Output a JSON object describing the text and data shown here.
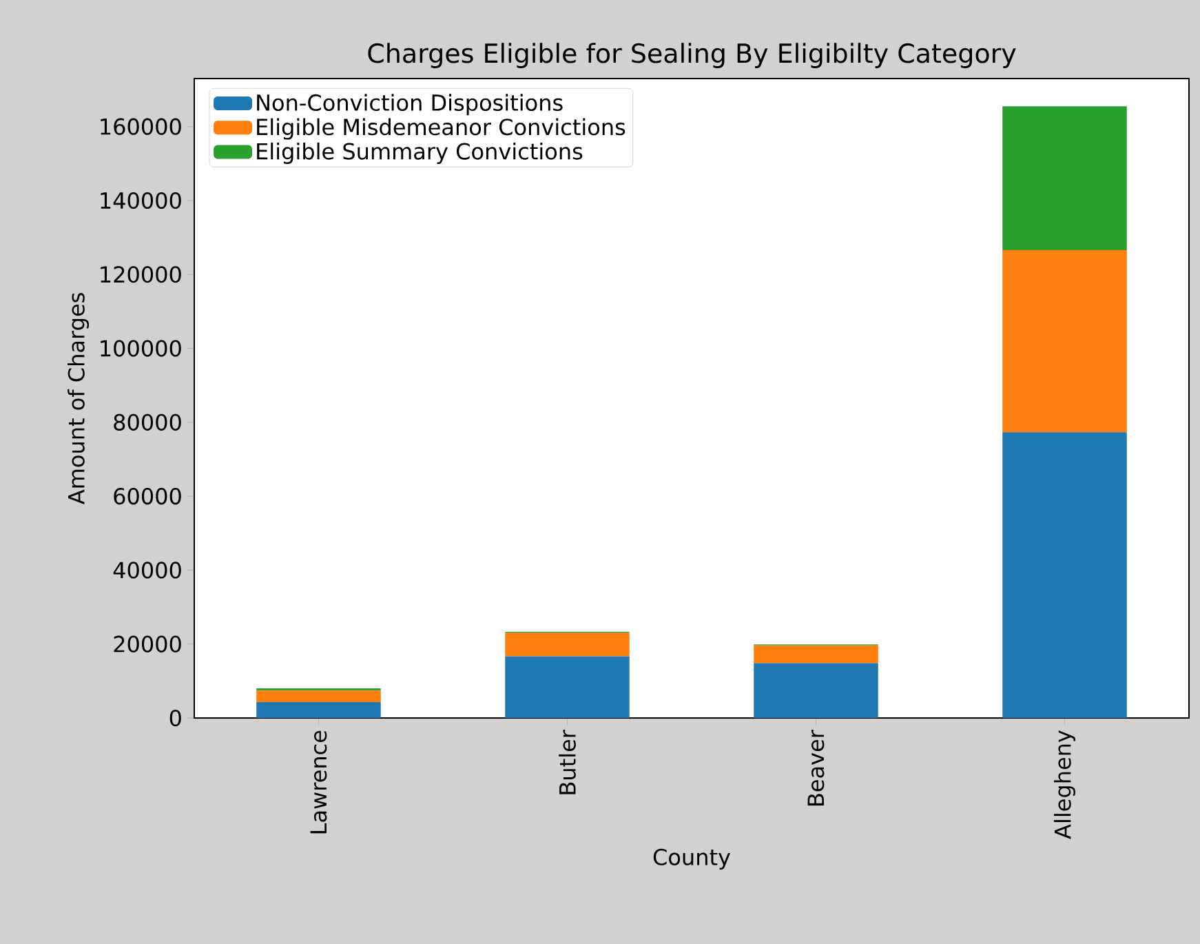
{
  "chart_data": {
    "type": "bar",
    "stacked": true,
    "title": "Charges Eligible for Sealing By Eligibilty Category",
    "xlabel": "County",
    "ylabel": "Amount of Charges",
    "categories": [
      "Lawrence",
      "Butler",
      "Beaver",
      "Allegheny"
    ],
    "series": [
      {
        "name": "Non-Conviction Dispositions",
        "color": "#1f77b4",
        "values": [
          4300,
          16700,
          14800,
          77300
        ]
      },
      {
        "name": "Eligible Misdemeanor Convictions",
        "color": "#ff7f0e",
        "values": [
          3100,
          6300,
          4800,
          49300
        ]
      },
      {
        "name": "Eligible Summary Convictions",
        "color": "#2ca02c",
        "values": [
          600,
          300,
          300,
          38900
        ]
      }
    ],
    "ylim": [
      0,
      173000
    ],
    "yticks": [
      0,
      20000,
      40000,
      60000,
      80000,
      100000,
      120000,
      140000,
      160000
    ],
    "legend": "top left",
    "grid": false
  }
}
